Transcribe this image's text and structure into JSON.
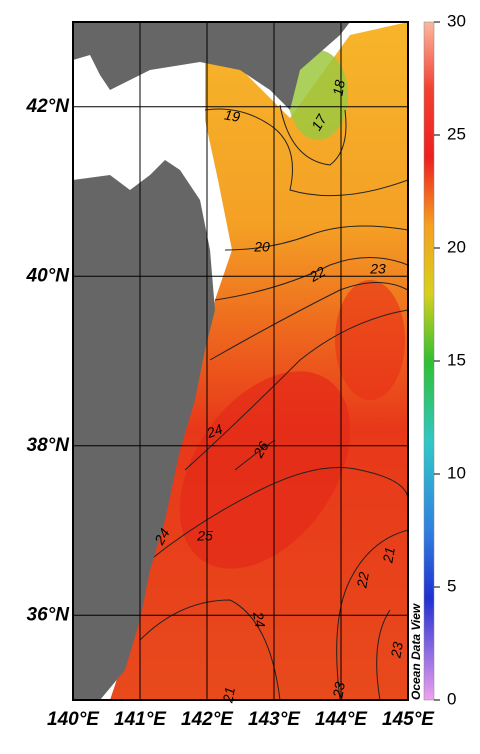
{
  "map": {
    "xlim": [
      140,
      145
    ],
    "ylim": [
      35,
      43
    ],
    "xticks": [
      {
        "value": 140,
        "label": "140°E"
      },
      {
        "value": 141,
        "label": "141°E"
      },
      {
        "value": 142,
        "label": "142°E"
      },
      {
        "value": 143,
        "label": "143°E"
      },
      {
        "value": 144,
        "label": "144°E"
      },
      {
        "value": 145,
        "label": "145°E"
      }
    ],
    "yticks": [
      {
        "value": 36,
        "label": "36°N"
      },
      {
        "value": 38,
        "label": "38°N"
      },
      {
        "value": 40,
        "label": "40°N"
      },
      {
        "value": 42,
        "label": "42°N"
      }
    ],
    "contour_labels": [
      "19",
      "17",
      "18",
      "20",
      "22",
      "23",
      "24",
      "26",
      "25",
      "24",
      "24",
      "21",
      "22",
      "23",
      "21",
      "23"
    ],
    "watermark": "Ocean Data View"
  },
  "colorbar": {
    "lim": [
      0,
      30
    ],
    "ticks": [
      0,
      5,
      10,
      15,
      20,
      25,
      30
    ]
  }
}
